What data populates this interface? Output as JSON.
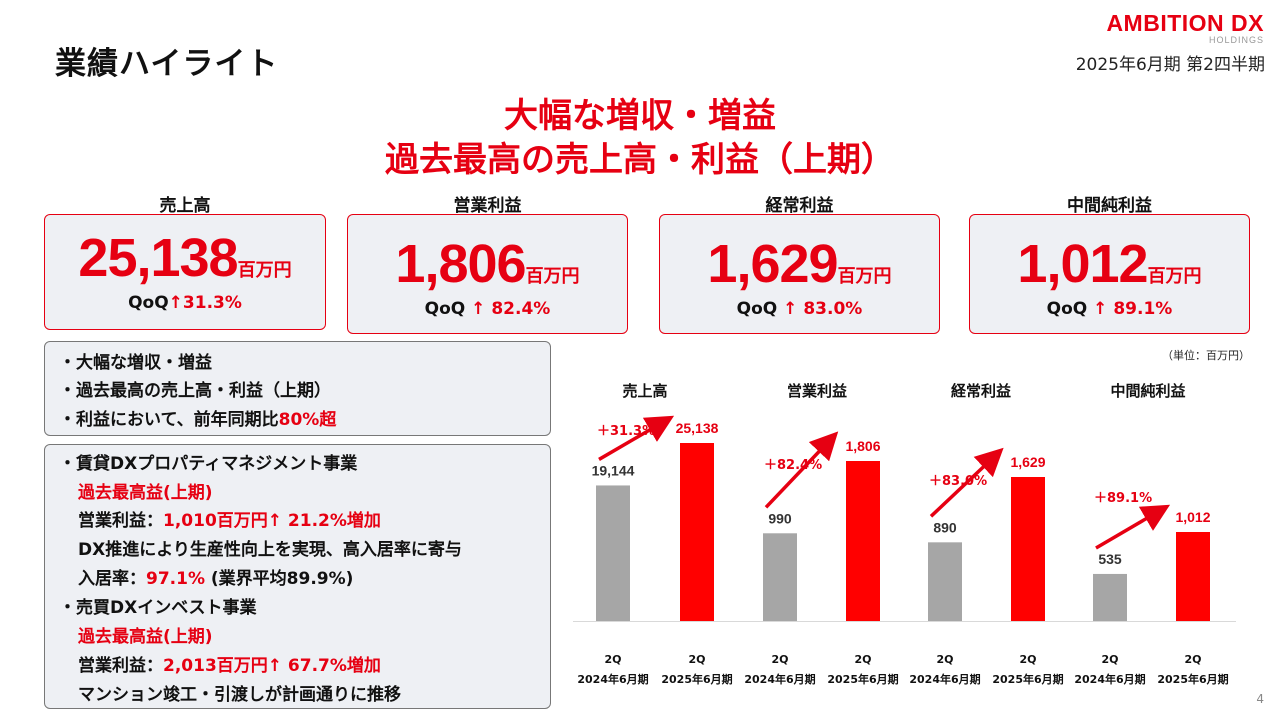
{
  "header": {
    "title": "業績ハイライト",
    "logo_brand": "AMBITION",
    "logo_brand_dx": "DX",
    "logo_sub": "HOLDINGS",
    "period": "2025年6月期 第2四半期"
  },
  "headline": {
    "line1": "大幅な増収・増益",
    "line2": "過去最高の売上高・利益（上期）"
  },
  "kpis": [
    {
      "label": "売上高",
      "value": "25,138",
      "unit": "百万円",
      "qoq_label": "QoQ",
      "qoq_arrow": "↑",
      "qoq_value": "31.3%"
    },
    {
      "label": "営業利益",
      "value": "1,806",
      "unit": "百万円",
      "qoq_label": "QoQ",
      "qoq_arrow": "↑",
      "qoq_value": "82.4%"
    },
    {
      "label": "経常利益",
      "value": "1,629",
      "unit": "百万円",
      "qoq_label": "QoQ",
      "qoq_arrow": "↑",
      "qoq_value": "83.0%"
    },
    {
      "label": "中間純利益",
      "value": "1,012",
      "unit": "百万円",
      "qoq_label": "QoQ",
      "qoq_arrow": "↑",
      "qoq_value": "89.1%"
    }
  ],
  "summary": {
    "line1": "・大幅な増収・増益",
    "line2": "・過去最高の売上高・利益（上期）",
    "line3_prefix": "・利益において、前年同期比",
    "line3_highlight": "80%超"
  },
  "segments": {
    "rental_title": "・賃貸DXプロパティマネジメント事業",
    "rental_record": "過去最高益(上期)",
    "rental_profit_prefix": "営業利益：",
    "rental_profit_value": "1,010百万円↑ 21.2%増加",
    "rental_dx": "DX推進により生産性向上を実現、高入居率に寄与",
    "rental_occ_prefix": "入居率：",
    "rental_occ_value": "97.1%",
    "rental_occ_suffix": "(業界平均89.9%)",
    "sales_title": "・売買DXインベスト事業",
    "sales_record": "過去最高益(上期)",
    "sales_profit_prefix": "営業利益：",
    "sales_profit_value": "2,013百万円↑ 67.7%増加",
    "sales_note": "マンション竣工・引渡しが計画通りに推移"
  },
  "unit_note": "（単位：百万円）",
  "page_number": "4",
  "colors": {
    "accent": "#e60012",
    "prior_bar": "#a6a6a6",
    "current_bar": "#ff0000"
  },
  "chart_data": {
    "type": "bar",
    "panels": [
      {
        "title": "売上高",
        "categories": [
          "2Q 2024年6月期",
          "2Q 2025年6月期"
        ],
        "values": [
          19144,
          25138
        ],
        "labels": [
          "19,144",
          "25,138"
        ],
        "growth": "＋31.3%"
      },
      {
        "title": "営業利益",
        "categories": [
          "2Q 2024年6月期",
          "2Q 2025年6月期"
        ],
        "values": [
          990,
          1806
        ],
        "labels": [
          "990",
          "1,806"
        ],
        "growth": "＋82.4%"
      },
      {
        "title": "経常利益",
        "categories": [
          "2Q 2024年6月期",
          "2Q 2025年6月期"
        ],
        "values": [
          890,
          1629
        ],
        "labels": [
          "890",
          "1,629"
        ],
        "growth": "＋83.0%"
      },
      {
        "title": "中間純利益",
        "categories": [
          "2Q 2024年6月期",
          "2Q 2025年6月期"
        ],
        "values": [
          535,
          1012
        ],
        "labels": [
          "535",
          "1,012"
        ],
        "growth": "＋89.1%"
      }
    ],
    "tick_top": "2Q",
    "tick_prior": "2024年6月期",
    "tick_current": "2025年6月期",
    "grid": false,
    "legend": "none"
  }
}
